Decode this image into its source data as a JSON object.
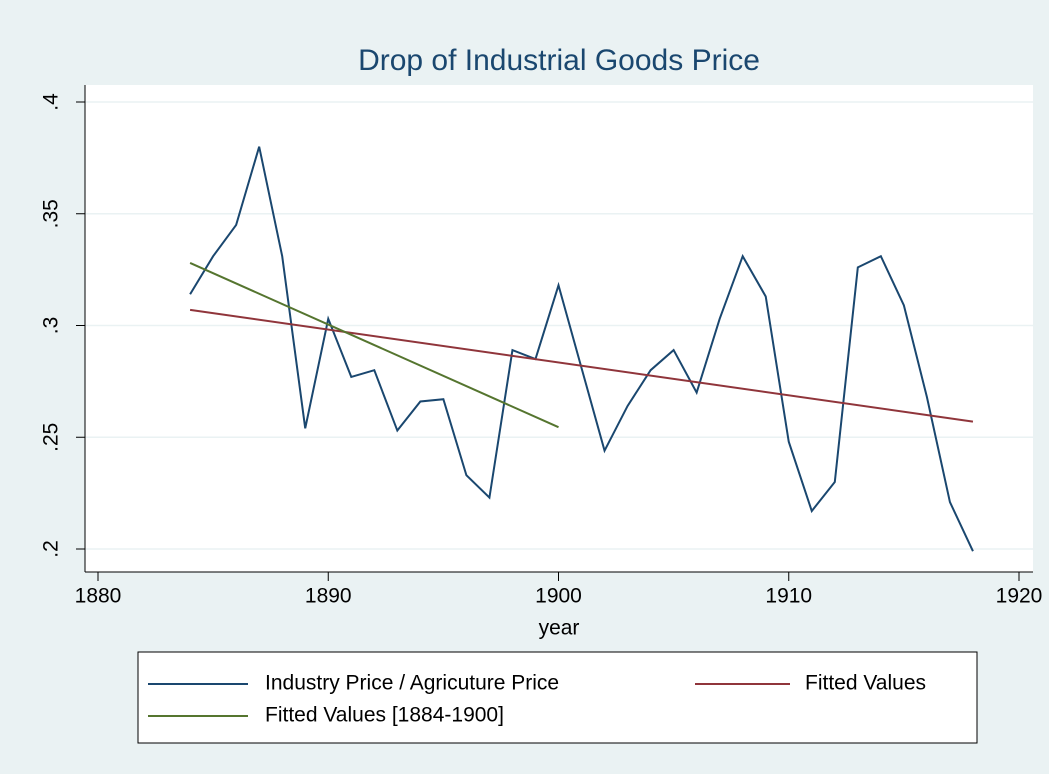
{
  "chart_data": {
    "type": "line",
    "title": "Drop of Industrial Goods Price",
    "x_label": "year",
    "xlim": [
      1880,
      1920
    ],
    "xticks": [
      1880,
      1890,
      1900,
      1910,
      1920
    ],
    "ylim": [
      0.2,
      0.4
    ],
    "yticks": [
      {
        "value": 0.2,
        "label": ".2"
      },
      {
        "value": 0.25,
        "label": ".25"
      },
      {
        "value": 0.3,
        "label": ".3"
      },
      {
        "value": 0.35,
        "label": ".35"
      },
      {
        "value": 0.4,
        "label": ".4"
      }
    ],
    "grid": true,
    "series": [
      {
        "name": "Industry Price / Agricuture Price",
        "color": "#1a476f",
        "x": [
          1884,
          1885,
          1886,
          1887,
          1888,
          1889,
          1890,
          1891,
          1892,
          1893,
          1894,
          1895,
          1896,
          1897,
          1898,
          1899,
          1900,
          1901,
          1902,
          1903,
          1904,
          1905,
          1906,
          1907,
          1908,
          1909,
          1910,
          1911,
          1912,
          1913,
          1914,
          1915,
          1916,
          1917,
          1918
        ],
        "values": [
          0.314,
          0.331,
          0.345,
          0.38,
          0.331,
          0.254,
          0.303,
          0.277,
          0.28,
          0.253,
          0.266,
          0.267,
          0.233,
          0.223,
          0.289,
          0.285,
          0.318,
          0.281,
          0.244,
          0.264,
          0.28,
          0.289,
          0.27,
          0.303,
          0.331,
          0.313,
          0.248,
          0.217,
          0.23,
          0.326,
          0.331,
          0.309,
          0.268,
          0.221,
          0.199
        ]
      },
      {
        "name": "Fitted Values",
        "color": "#90353b",
        "x": [
          1884,
          1918
        ],
        "values": [
          0.307,
          0.257
        ]
      },
      {
        "name": "Fitted Values [1884-1900]",
        "color": "#55752f",
        "x": [
          1884,
          1900
        ],
        "values": [
          0.328,
          0.2545
        ]
      }
    ]
  }
}
